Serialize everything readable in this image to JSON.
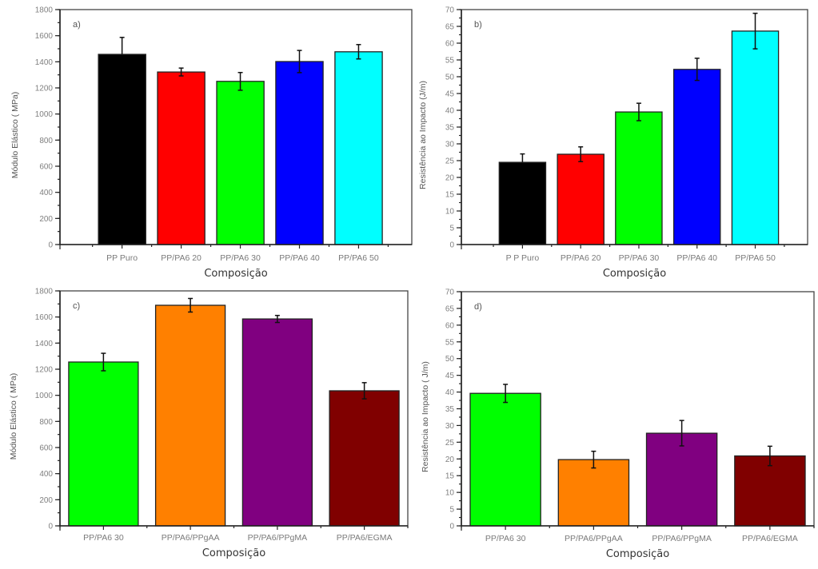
{
  "chart_data": [
    {
      "type": "bar",
      "panel_label": "a)",
      "title": "",
      "xlabel": "Composição",
      "ylabel": "Módulo Elástico ( MPa)",
      "ylim": [
        0,
        1800
      ],
      "y_major_step": 200,
      "y_minor_step": 100,
      "yticks": [
        "0",
        "200",
        "400",
        "600",
        "800",
        "1000",
        "1200",
        "1400",
        "1600",
        "1800"
      ],
      "categories": [
        "PP Puro",
        "PP/PA6 20",
        "PP/PA6 30",
        "PP/PA6 40",
        "PP/PA6 50"
      ],
      "values": [
        1457,
        1322,
        1250,
        1402,
        1477
      ],
      "errors": [
        130,
        30,
        68,
        85,
        55
      ],
      "error_style": "upper-only-first",
      "colors": [
        "#000000",
        "#ff0000",
        "#00ff00",
        "#0000ff",
        "#00ffff"
      ],
      "grid": false,
      "legend": "none"
    },
    {
      "type": "bar",
      "panel_label": "b)",
      "title": "",
      "xlabel": "Composição",
      "ylabel": "Resistência ao Impacto (J/m)",
      "ylim": [
        0,
        70
      ],
      "y_major_step": 5,
      "y_minor_step": 2.5,
      "yticks": [
        "0",
        "5",
        "10",
        "15",
        "20",
        "25",
        "30",
        "35",
        "40",
        "45",
        "50",
        "55",
        "60",
        "65",
        "70"
      ],
      "categories": [
        "P P Puro",
        "PP/PA6 20",
        "PP/PA6 30",
        "PP/PA6 40",
        "PP/PA6 50"
      ],
      "values": [
        24.5,
        26.9,
        39.5,
        52.2,
        63.6
      ],
      "errors": [
        2.5,
        2.2,
        2.6,
        3.3,
        5.3
      ],
      "error_style": "upper-only-first",
      "colors": [
        "#000000",
        "#ff0000",
        "#00ff00",
        "#0000ff",
        "#00ffff"
      ],
      "grid": false,
      "legend": "none"
    },
    {
      "type": "bar",
      "panel_label": "c)",
      "title": "",
      "xlabel": "Composição",
      "ylabel": "Módulo Elástico ( MPa)",
      "ylim": [
        0,
        1800
      ],
      "y_major_step": 200,
      "y_minor_step": 100,
      "yticks": [
        "0",
        "200",
        "400",
        "600",
        "800",
        "1000",
        "1200",
        "1400",
        "1600",
        "1800"
      ],
      "categories": [
        "PP/PA6 30",
        "PP/PA6/PPgAA",
        "PP/PA6/PPgMA",
        "PP/PA6/EGMA"
      ],
      "values": [
        1255,
        1690,
        1585,
        1035
      ],
      "errors": [
        67,
        52,
        27,
        62
      ],
      "error_style": "both",
      "colors": [
        "#00ff00",
        "#ff8000",
        "#800080",
        "#800000"
      ],
      "grid": false,
      "legend": "none"
    },
    {
      "type": "bar",
      "panel_label": "d)",
      "title": "",
      "xlabel": "Composição",
      "ylabel": "Resistência ao Impacto ( J/m)",
      "ylim": [
        0,
        70
      ],
      "y_major_step": 5,
      "y_minor_step": 2.5,
      "yticks": [
        "0",
        "5",
        "10",
        "15",
        "20",
        "25",
        "30",
        "35",
        "40",
        "45",
        "50",
        "55",
        "60",
        "65",
        "70"
      ],
      "categories": [
        "PP/PA6 30",
        "PP/PA6/PPgAA",
        "PP/PA6/PPgMA",
        "PP/PA6/EGMA"
      ],
      "values": [
        39.6,
        19.8,
        27.7,
        20.9
      ],
      "errors": [
        2.7,
        2.5,
        3.8,
        2.9
      ],
      "error_style": "both",
      "colors": [
        "#00ff00",
        "#ff8000",
        "#800080",
        "#800000"
      ],
      "grid": false,
      "legend": "none"
    }
  ]
}
